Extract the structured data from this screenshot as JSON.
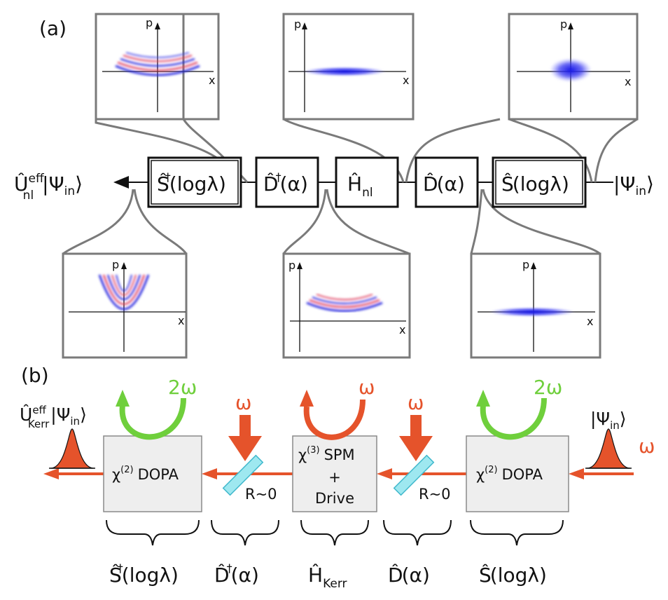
{
  "panel_a": {
    "label": "(a)",
    "output_state": {
      "op": "Û",
      "sup": "eff",
      "sub": "nl",
      "ket": "|Ψ",
      "ket_sub": "in",
      "ket_close": "⟩"
    },
    "input_state": {
      "ket": "|Ψ",
      "ket_sub": "in",
      "ket_close": "⟩"
    },
    "operators": [
      {
        "name": "Ŝ",
        "dagger": "†",
        "arg": "(logλ)"
      },
      {
        "name": "D̂",
        "dagger": "†",
        "arg": "(α)"
      },
      {
        "name": "Ĥ",
        "sub": "nl"
      },
      {
        "name": "D̂",
        "arg": "(α)"
      },
      {
        "name": "Ŝ",
        "arg": "(logλ)"
      }
    ],
    "axis_p": "p",
    "axis_x": "x"
  },
  "panel_b": {
    "label": "(b)",
    "output_state": {
      "op": "Û",
      "sup": "eff",
      "sub": "Kerr",
      "ket": "|Ψ",
      "ket_sub": "in",
      "ket_close": "⟩"
    },
    "input_state": {
      "ket": "|Ψ",
      "ket_sub": "in",
      "ket_close": "⟩"
    },
    "omega": "ω",
    "two_omega": "2ω",
    "mirror_label": "R~0",
    "dopa_chi": "χ",
    "dopa_chi_sup": "(2)",
    "dopa_text": "DOPA",
    "spm_chi": "χ",
    "spm_chi_sup": "(3)",
    "spm_text": "SPM",
    "spm_plus": "+",
    "spm_drive": "Drive",
    "brace_labels": [
      {
        "name": "Ŝ",
        "dagger": "†",
        "arg": "(logλ)"
      },
      {
        "name": "D̂",
        "dagger": "†",
        "arg": "(α)"
      },
      {
        "name": "Ĥ",
        "sub": "Kerr"
      },
      {
        "name": "D̂",
        "arg": "(α)"
      },
      {
        "name": "Ŝ",
        "arg": "(logλ)"
      }
    ]
  },
  "colors": {
    "orange": "#e5532b",
    "green": "#6fcf3c",
    "blue": "#1f1fd8",
    "red": "#e0303a"
  }
}
